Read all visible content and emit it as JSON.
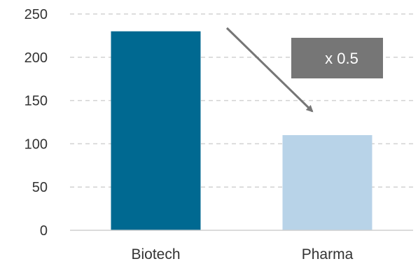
{
  "chart_data": {
    "type": "bar",
    "categories": [
      "Biotech",
      "Pharma"
    ],
    "values": [
      230,
      110
    ],
    "ylim": [
      0,
      250
    ],
    "yticks": [
      0,
      50,
      100,
      150,
      200,
      250
    ],
    "grid": true,
    "colors": [
      "#006991",
      "#b8d3e8"
    ],
    "annotation": {
      "text": "x 0.5",
      "box_color": "#767676",
      "arrow_color": "#767676"
    }
  }
}
